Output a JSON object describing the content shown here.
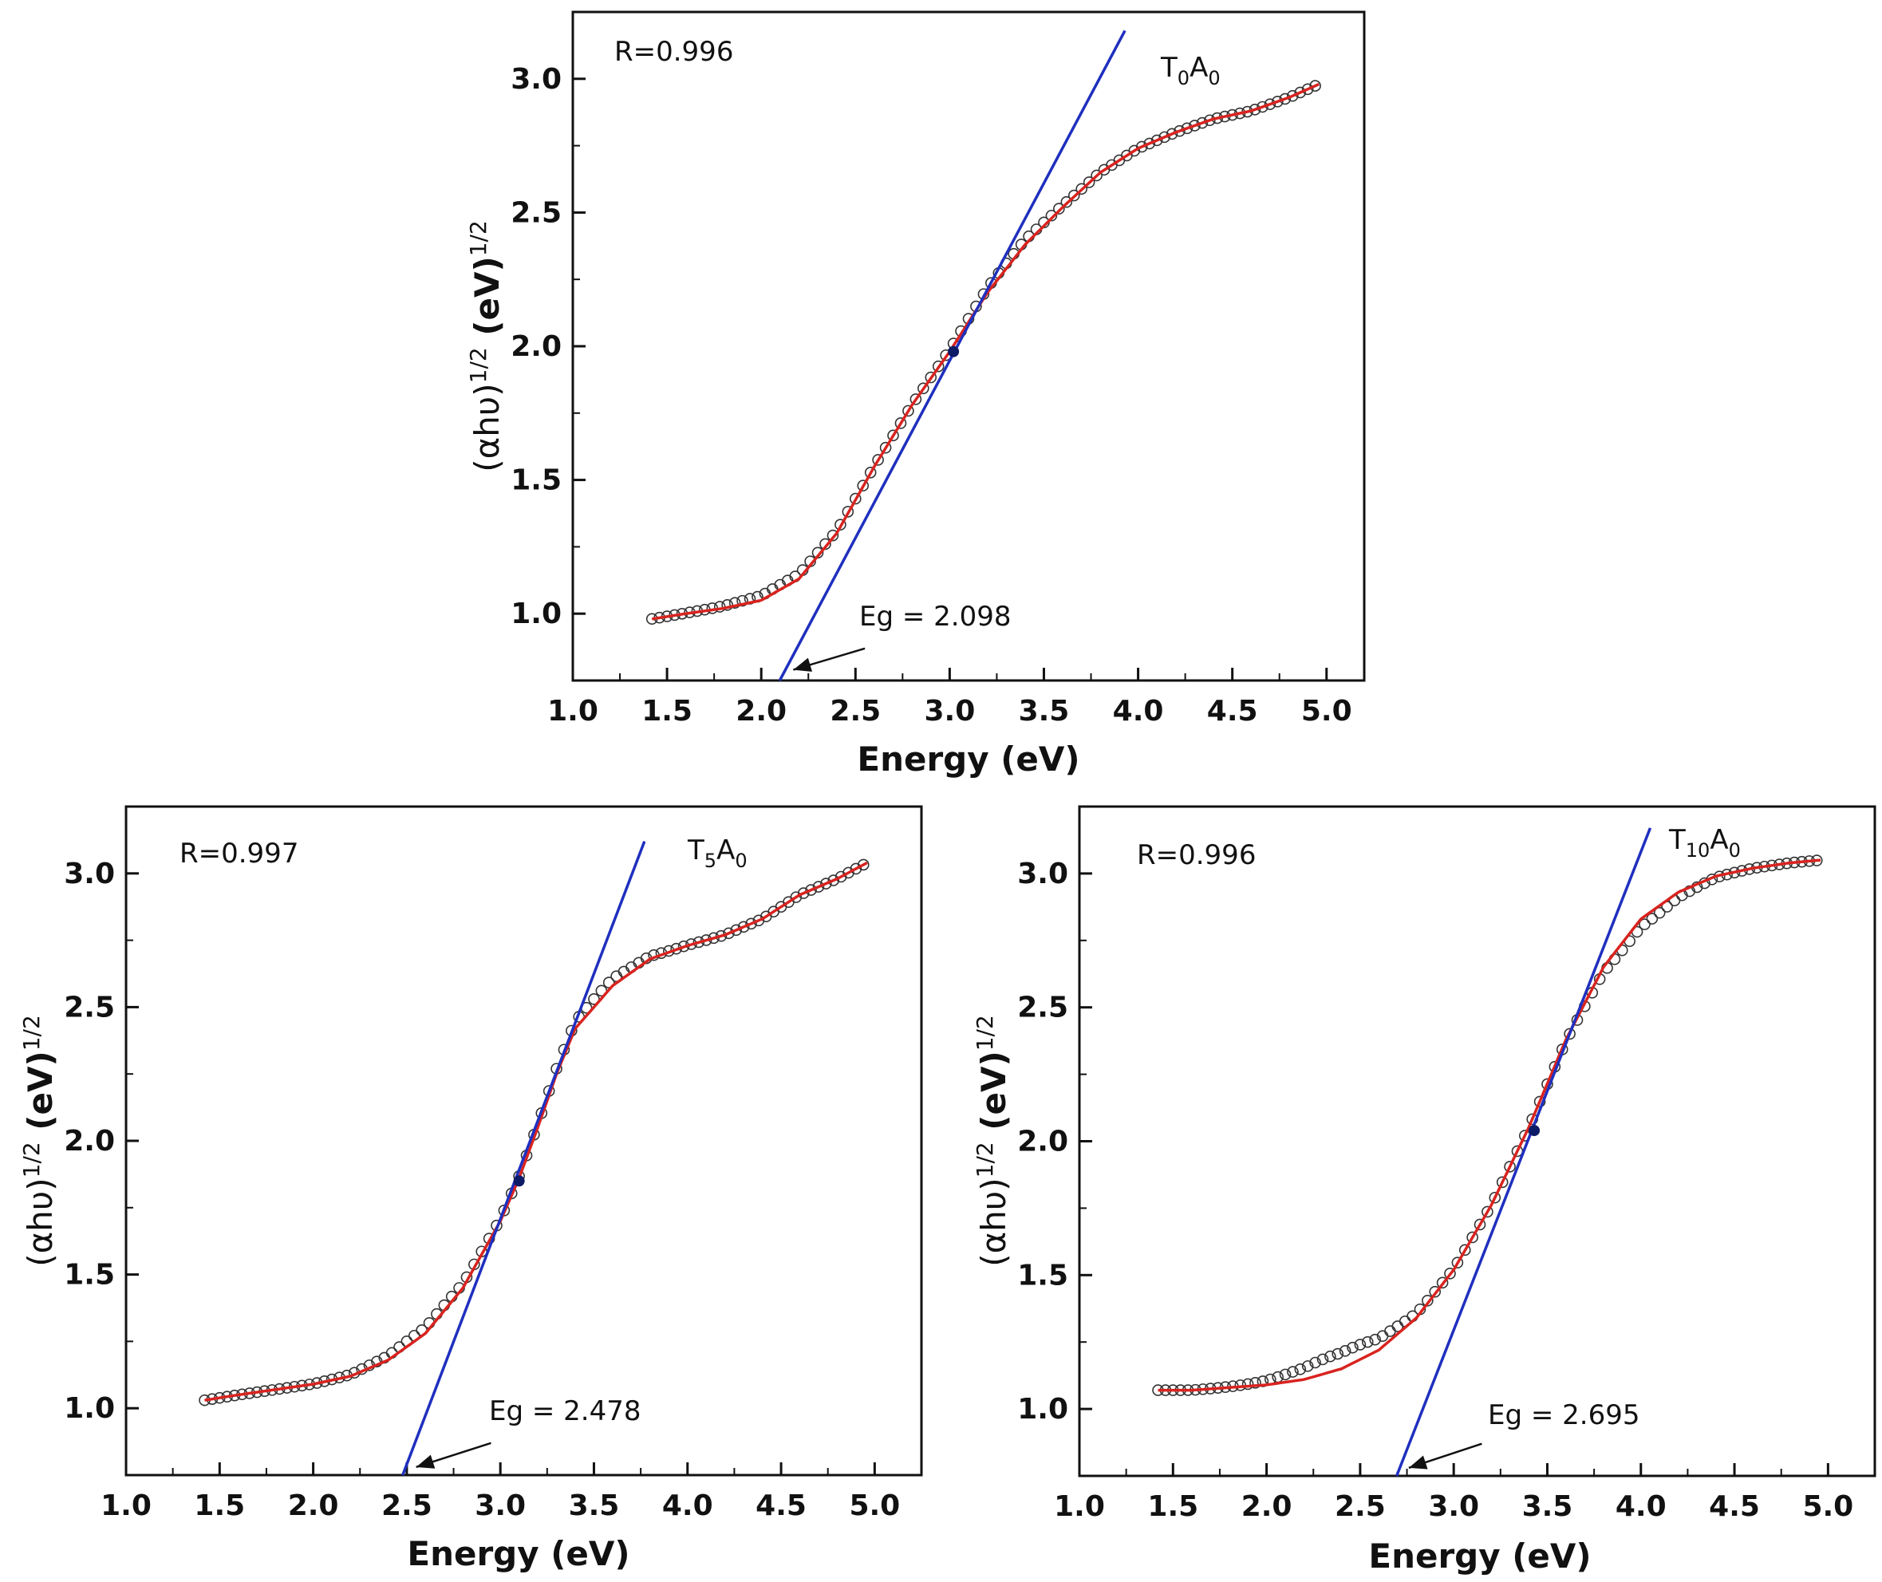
{
  "chart_data": [
    {
      "type": "scatter",
      "title": "",
      "sample": {
        "main": "T",
        "sub1": "0",
        "mid": "A",
        "sub2": "0"
      },
      "r_text": "R=0.996",
      "eg_text": "Eg = 2.098",
      "eg_value": 2.098,
      "xlabel": "Energy (eV)",
      "ylabel": {
        "pre": "(αhυ)",
        "sup1": "1/2",
        "mid": " (eV)",
        "sup2": "1/2"
      },
      "xlim": [
        1.0,
        5.2
      ],
      "ylim": [
        0.75,
        3.25
      ],
      "xticks": [
        "1.0",
        "1.5",
        "2.0",
        "2.5",
        "3.0",
        "3.5",
        "4.0",
        "4.5",
        "5.0"
      ],
      "yticks": [
        "1.0",
        "1.5",
        "2.0",
        "2.5",
        "3.0"
      ],
      "fit_curve": {
        "x": [
          1.42,
          1.6,
          1.8,
          2.0,
          2.2,
          2.4,
          2.6,
          2.8,
          3.0,
          3.2,
          3.4,
          3.6,
          3.8,
          4.0,
          4.2,
          4.4,
          4.6,
          4.8,
          4.96
        ],
        "y": [
          0.98,
          1.0,
          1.02,
          1.05,
          1.13,
          1.3,
          1.55,
          1.78,
          1.98,
          2.2,
          2.38,
          2.52,
          2.65,
          2.74,
          2.8,
          2.85,
          2.88,
          2.93,
          2.98
        ]
      },
      "tangent_line": {
        "x": [
          2.098,
          3.93
        ],
        "y": [
          0.75,
          3.18
        ]
      },
      "tangent_point": {
        "x": 3.02,
        "y": 1.98
      },
      "eg_arrow": {
        "tail": [
          2.55,
          0.87
        ],
        "head": [
          2.17,
          0.79
        ]
      },
      "scatter": {
        "x_start": 1.42,
        "x_end": 4.96,
        "step": 0.04,
        "low_x": 2.1,
        "low_amp": 0.018,
        "high_x": 3.3,
        "high_amp": 0.02
      }
    },
    {
      "type": "scatter",
      "title": "",
      "sample": {
        "main": "T",
        "sub1": "5",
        "mid": "A",
        "sub2": "0"
      },
      "r_text": "R=0.997",
      "eg_text": "Eg = 2.478",
      "eg_value": 2.478,
      "xlabel": "Energy (eV)",
      "ylabel": {
        "pre": "(αhυ)",
        "sup1": "1/2",
        "mid": " (eV)",
        "sup2": "1/2"
      },
      "xlim": [
        1.0,
        5.25
      ],
      "ylim": [
        0.75,
        3.25
      ],
      "xticks": [
        "1.0",
        "1.5",
        "2.0",
        "2.5",
        "3.0",
        "3.5",
        "4.0",
        "4.5",
        "5.0"
      ],
      "yticks": [
        "1.0",
        "1.5",
        "2.0",
        "2.5",
        "3.0"
      ],
      "fit_curve": {
        "x": [
          1.42,
          1.6,
          1.8,
          2.0,
          2.2,
          2.4,
          2.6,
          2.8,
          3.0,
          3.1,
          3.2,
          3.3,
          3.4,
          3.6,
          3.8,
          4.0,
          4.2,
          4.4,
          4.6,
          4.8,
          4.96
        ],
        "y": [
          1.03,
          1.05,
          1.07,
          1.09,
          1.12,
          1.18,
          1.28,
          1.45,
          1.7,
          1.86,
          2.05,
          2.25,
          2.42,
          2.58,
          2.68,
          2.73,
          2.77,
          2.83,
          2.92,
          2.98,
          3.04
        ]
      },
      "tangent_line": {
        "x": [
          2.478,
          3.77
        ],
        "y": [
          0.75,
          3.12
        ]
      },
      "tangent_point": {
        "x": 3.1,
        "y": 1.85
      },
      "eg_arrow": {
        "tail": [
          2.95,
          0.87
        ],
        "head": [
          2.55,
          0.78
        ]
      },
      "scatter": {
        "x_start": 1.42,
        "x_end": 4.96,
        "step": 0.04,
        "low_x": 2.6,
        "low_amp": 0.022,
        "high_x": 3.5,
        "high_amp": 0.03
      }
    },
    {
      "type": "scatter",
      "title": "",
      "sample": {
        "main": "T",
        "sub1": "10",
        "mid": "A",
        "sub2": "0"
      },
      "r_text": "R=0.996",
      "eg_text": "Eg = 2.695",
      "eg_value": 2.695,
      "xlabel": "Energy (eV)",
      "ylabel": {
        "pre": "(αhυ)",
        "sup1": "1/2",
        "mid": " (eV)",
        "sup2": "1/2"
      },
      "xlim": [
        1.0,
        5.25
      ],
      "ylim": [
        0.75,
        3.25
      ],
      "xticks": [
        "1.0",
        "1.5",
        "2.0",
        "2.5",
        "3.0",
        "3.5",
        "4.0",
        "4.5",
        "5.0"
      ],
      "yticks": [
        "1.0",
        "1.5",
        "2.0",
        "2.5",
        "3.0"
      ],
      "fit_curve": {
        "x": [
          1.42,
          1.6,
          1.8,
          2.0,
          2.2,
          2.4,
          2.6,
          2.8,
          3.0,
          3.2,
          3.4,
          3.6,
          3.8,
          4.0,
          4.2,
          4.4,
          4.6,
          4.8,
          4.96
        ],
        "y": [
          1.07,
          1.07,
          1.08,
          1.09,
          1.11,
          1.15,
          1.22,
          1.34,
          1.52,
          1.76,
          2.05,
          2.38,
          2.65,
          2.83,
          2.93,
          2.99,
          3.02,
          3.04,
          3.05
        ]
      },
      "tangent_line": {
        "x": [
          2.695,
          4.05
        ],
        "y": [
          0.75,
          3.17
        ]
      },
      "tangent_point": {
        "x": 3.43,
        "y": 2.04
      },
      "eg_arrow": {
        "tail": [
          3.15,
          0.87
        ],
        "head": [
          2.76,
          0.78
        ]
      },
      "scatter": {
        "x_start": 1.42,
        "x_end": 4.96,
        "step": 0.04,
        "low_x": 2.4,
        "low_amp": 0.06,
        "high_x": 4.0,
        "high_amp": -0.03
      }
    }
  ]
}
